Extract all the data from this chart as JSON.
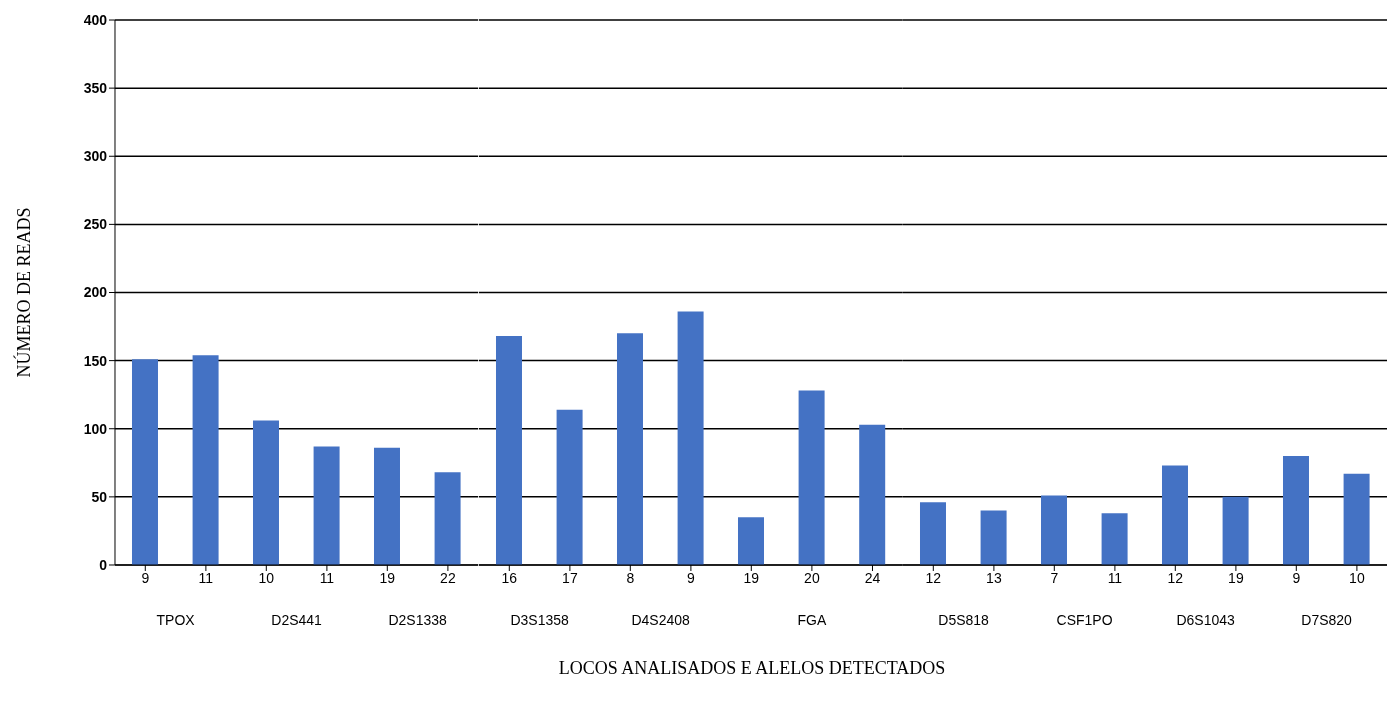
{
  "chart_data": [
    {
      "type": "bar",
      "categories": [
        "9",
        "11"
      ],
      "values": [
        151,
        154
      ],
      "color": "#4472c4",
      "xlabel": "TPOX",
      "ylabel": "NÚMERO DE READS",
      "ylim": [
        0,
        400
      ],
      "yticks": [
        0,
        50,
        100,
        150,
        200,
        250,
        300,
        350,
        400
      ],
      "grid": "y",
      "annotations": [
        "LOCOS ANALISADOS E ALELOS DETECTADOS"
      ]
    },
    {
      "type": "bar",
      "categories": [
        "10",
        "11"
      ],
      "values": [
        106,
        87
      ],
      "color": "#4472c4",
      "xlabel": "D2S441",
      "ylim": [
        0,
        400
      ],
      "yticks": [
        0,
        50,
        100,
        150,
        200,
        250,
        300,
        350,
        400
      ],
      "grid": "y",
      "tick_labels": "x"
    },
    {
      "type": "bar",
      "categories": [
        "19",
        "22"
      ],
      "values": [
        86,
        68
      ],
      "color": "#4472c4",
      "xlabel": "D2S1338",
      "ylim": [
        0,
        400
      ],
      "yticks": [
        0,
        50,
        100,
        150,
        200,
        250,
        300,
        350,
        400
      ],
      "grid": "y",
      "tick_labels": "x"
    },
    {
      "type": "bar",
      "categories": [
        "16",
        "17"
      ],
      "values": [
        168,
        114
      ],
      "color": "#4472c4",
      "xlabel": "D3S1358",
      "ylim": [
        0,
        400
      ],
      "yticks": [
        0,
        50,
        100,
        150,
        200,
        250,
        300,
        350,
        400
      ],
      "grid": "y",
      "tick_labels": "x"
    },
    {
      "type": "bar",
      "categories": [
        "8",
        "9"
      ],
      "values": [
        170,
        186
      ],
      "color": "#4472c4",
      "xlabel": "D4S2408",
      "ylim": [
        0,
        400
      ],
      "yticks": [
        0,
        50,
        100,
        150,
        200,
        250,
        300,
        350,
        400
      ],
      "grid": "y",
      "tick_labels": "x"
    },
    {
      "type": "bar",
      "categories": [
        "19",
        "20",
        "24"
      ],
      "values": [
        35,
        128,
        103
      ],
      "color": "#4472c4",
      "xlabel": "FGA",
      "ylim": [
        0,
        400
      ],
      "yticks": [
        0,
        50,
        100,
        150,
        200,
        250,
        300,
        350,
        400
      ],
      "grid": "y",
      "tick_labels": "x"
    },
    {
      "type": "bar",
      "categories": [
        "12",
        "13"
      ],
      "values": [
        46,
        40
      ],
      "color": "#4472c4",
      "xlabel": "D5S818",
      "ylim": [
        0,
        400
      ],
      "yticks": [
        0,
        50,
        100,
        150,
        200,
        250,
        300,
        350,
        400
      ],
      "grid": "y",
      "tick_labels": "x"
    },
    {
      "type": "bar",
      "categories": [
        "7",
        "11"
      ],
      "values": [
        51,
        38
      ],
      "color": "#4472c4",
      "xlabel": "CSF1PO",
      "ylim": [
        0,
        400
      ],
      "yticks": [
        0,
        50,
        100,
        150,
        200,
        250,
        300,
        350,
        400
      ],
      "grid": "y",
      "tick_labels": "x"
    },
    {
      "type": "bar",
      "categories": [
        "12",
        "19"
      ],
      "values": [
        73,
        50
      ],
      "color": "#4472c4",
      "xlabel": "D6S1043",
      "ylim": [
        0,
        400
      ],
      "yticks": [
        0,
        50,
        100,
        150,
        200,
        250,
        300,
        350,
        400
      ],
      "grid": "y",
      "tick_labels": "x"
    },
    {
      "type": "bar",
      "categories": [
        "9",
        "10"
      ],
      "values": [
        80,
        67
      ],
      "color": "#4472c4",
      "xlabel": "D7S820",
      "ylim": [
        0,
        400
      ],
      "yticks": [
        0,
        50,
        100,
        150,
        200,
        250,
        300,
        350,
        400
      ],
      "grid": "y",
      "tick_labels": "x"
    }
  ]
}
